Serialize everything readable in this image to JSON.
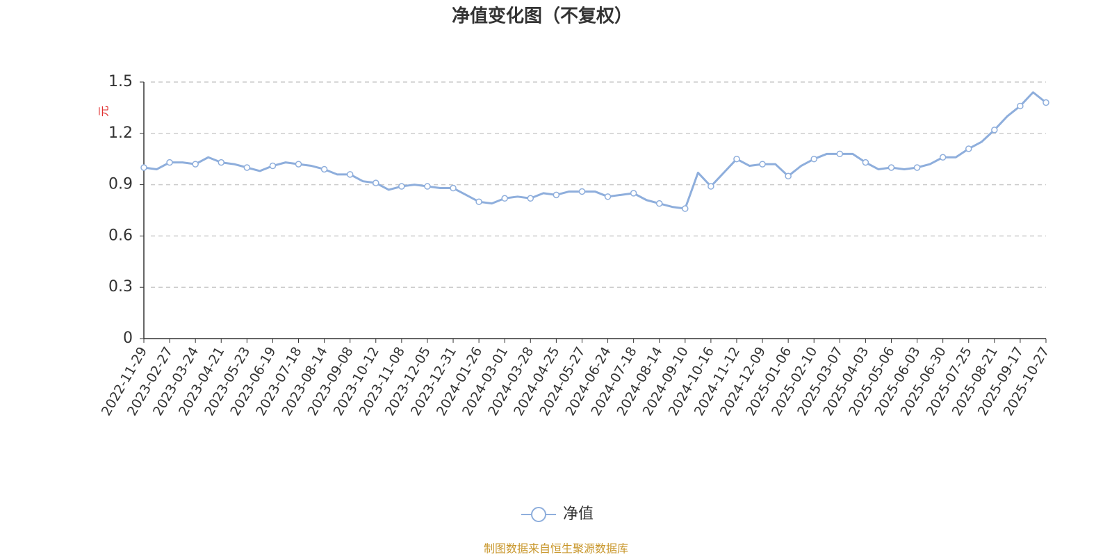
{
  "chart_data": {
    "type": "line",
    "title": "净值变化图（不复权）",
    "y_label": "元",
    "source": "制图数据来自恒生聚源数据库",
    "categories": [
      "2022-11-29",
      null,
      "2023-02-27",
      null,
      "2023-03-24",
      null,
      "2023-04-21",
      null,
      "2023-05-23",
      null,
      "2023-06-19",
      null,
      "2023-07-18",
      null,
      "2023-08-14",
      null,
      "2023-09-08",
      null,
      "2023-10-12",
      null,
      "2023-11-08",
      null,
      "2023-12-05",
      null,
      "2023-12-31",
      null,
      "2024-01-26",
      null,
      "2024-03-01",
      null,
      "2024-03-28",
      null,
      "2024-04-25",
      null,
      "2024-05-27",
      null,
      "2024-06-24",
      null,
      "2024-07-18",
      null,
      "2024-08-14",
      null,
      "2024-09-10",
      null,
      "2024-10-16",
      null,
      "2024-11-12",
      null,
      "2024-12-09",
      null,
      "2025-01-06",
      null,
      "2025-02-10",
      null,
      "2025-03-07",
      null,
      "2025-04-03",
      null,
      "2025-05-06",
      null,
      "2025-06-03",
      null,
      "2025-06-30",
      null,
      "2025-07-25",
      null,
      "2025-08-21",
      null,
      "2025-09-17",
      null,
      "2025-10-27"
    ],
    "series": [
      {
        "name": "净值",
        "color": "#8eaedc",
        "values": [
          1.0,
          0.99,
          1.03,
          1.03,
          1.02,
          1.06,
          1.03,
          1.02,
          1.0,
          0.98,
          1.01,
          1.03,
          1.02,
          1.01,
          0.99,
          0.96,
          0.96,
          0.92,
          0.91,
          0.87,
          0.89,
          0.9,
          0.89,
          0.88,
          0.88,
          0.84,
          0.8,
          0.79,
          0.82,
          0.83,
          0.82,
          0.85,
          0.84,
          0.86,
          0.86,
          0.86,
          0.83,
          0.84,
          0.85,
          0.81,
          0.79,
          0.77,
          0.76,
          0.97,
          0.89,
          0.97,
          1.05,
          1.01,
          1.02,
          1.02,
          0.95,
          1.01,
          1.05,
          1.08,
          1.08,
          1.08,
          1.03,
          0.99,
          1.0,
          0.99,
          1.0,
          1.02,
          1.06,
          1.06,
          1.11,
          1.15,
          1.22,
          1.3,
          1.36,
          1.44,
          1.38
        ]
      }
    ],
    "ylim": [
      0,
      1.5
    ],
    "yticks": [
      0,
      0.3,
      0.6,
      0.9,
      1.2,
      1.5
    ],
    "grid": true
  }
}
